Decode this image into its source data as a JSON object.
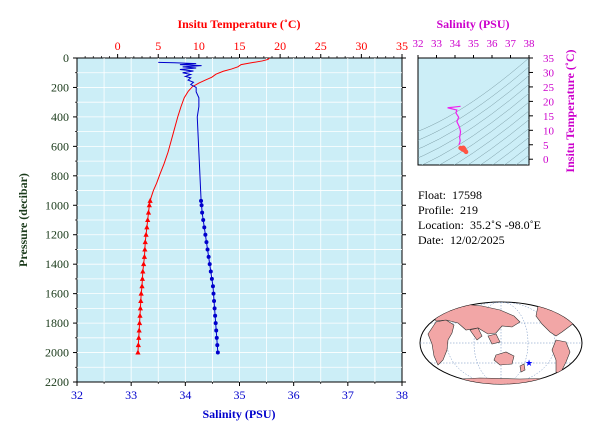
{
  "colors": {
    "temperature": "#ff0000",
    "salinity": "#0000cc",
    "pressure_axis": "#1a3a1a",
    "ts_axis": "#cc00cc",
    "plot_bg": "#cceef7",
    "ts_trace": "#ee22ee",
    "ts_points": "#ff5544",
    "land": "#f2a6a6",
    "ocean": "#ffffff",
    "float_marker": "#0000ff"
  },
  "chart_data": [
    {
      "type": "line",
      "name": "profile",
      "top_axis": {
        "label": "Insitu Temperature (˚C)",
        "range": [
          -5,
          35
        ],
        "ticks": [
          0,
          5,
          10,
          15,
          20,
          25,
          30,
          35
        ]
      },
      "bottom_axis": {
        "label": "Salinity (PSU)",
        "range": [
          32,
          38
        ],
        "ticks": [
          32,
          33,
          34,
          35,
          36,
          37,
          38
        ]
      },
      "left_axis": {
        "label": "Pressure (decibar)",
        "range": [
          0,
          2200
        ],
        "ticks": [
          0,
          200,
          400,
          600,
          800,
          1000,
          1200,
          1400,
          1600,
          1800,
          2000,
          2200
        ],
        "inverted": true
      },
      "series": [
        {
          "variable": "temperature",
          "line": [
            [
              18.7,
              0
            ],
            [
              18.5,
              10
            ],
            [
              17.8,
              20
            ],
            [
              16.2,
              35
            ],
            [
              15.2,
              45
            ],
            [
              14.8,
              60
            ],
            [
              14.0,
              75
            ],
            [
              13.0,
              90
            ],
            [
              12.1,
              110
            ],
            [
              11.6,
              130
            ],
            [
              10.8,
              150
            ],
            [
              10.0,
              170
            ],
            [
              9.2,
              195
            ],
            [
              8.7,
              225
            ],
            [
              8.2,
              270
            ],
            [
              7.8,
              330
            ],
            [
              7.4,
              400
            ],
            [
              7.0,
              480
            ],
            [
              6.6,
              560
            ],
            [
              6.2,
              640
            ],
            [
              5.7,
              720
            ],
            [
              5.2,
              790
            ],
            [
              4.8,
              850
            ],
            [
              4.4,
              900
            ],
            [
              4.1,
              950
            ],
            [
              3.9,
              1000
            ],
            [
              3.8,
              1050
            ],
            [
              3.7,
              1100
            ],
            [
              3.6,
              1150
            ],
            [
              3.5,
              1200
            ],
            [
              3.4,
              1250
            ],
            [
              3.35,
              1300
            ],
            [
              3.3,
              1350
            ],
            [
              3.2,
              1400
            ],
            [
              3.1,
              1450
            ],
            [
              3.05,
              1500
            ],
            [
              3.0,
              1550
            ],
            [
              2.9,
              1600
            ],
            [
              2.85,
              1650
            ],
            [
              2.8,
              1700
            ],
            [
              2.75,
              1750
            ],
            [
              2.7,
              1800
            ],
            [
              2.65,
              1850
            ],
            [
              2.6,
              1900
            ],
            [
              2.55,
              1950
            ],
            [
              2.5,
              2000
            ]
          ],
          "markers": [
            [
              4.0,
              970
            ],
            [
              3.9,
              1000
            ],
            [
              3.8,
              1050
            ],
            [
              3.7,
              1100
            ],
            [
              3.6,
              1150
            ],
            [
              3.5,
              1200
            ],
            [
              3.4,
              1250
            ],
            [
              3.35,
              1300
            ],
            [
              3.3,
              1350
            ],
            [
              3.2,
              1400
            ],
            [
              3.1,
              1450
            ],
            [
              3.05,
              1500
            ],
            [
              3.0,
              1550
            ],
            [
              2.9,
              1600
            ],
            [
              2.85,
              1650
            ],
            [
              2.8,
              1700
            ],
            [
              2.75,
              1750
            ],
            [
              2.7,
              1800
            ],
            [
              2.65,
              1850
            ],
            [
              2.6,
              1900
            ],
            [
              2.55,
              1950
            ],
            [
              2.5,
              2000
            ]
          ]
        },
        {
          "variable": "salinity",
          "line": [
            [
              33.5,
              30
            ],
            [
              33.8,
              32
            ],
            [
              34.2,
              38
            ],
            [
              33.9,
              45
            ],
            [
              34.3,
              52
            ],
            [
              33.95,
              60
            ],
            [
              34.2,
              68
            ],
            [
              33.9,
              78
            ],
            [
              34.15,
              88
            ],
            [
              33.95,
              100
            ],
            [
              34.1,
              112
            ],
            [
              34.0,
              125
            ],
            [
              34.1,
              135
            ],
            [
              34.05,
              150
            ],
            [
              34.15,
              165
            ],
            [
              34.1,
              180
            ],
            [
              34.2,
              200
            ],
            [
              34.2,
              230
            ],
            [
              34.25,
              270
            ],
            [
              34.25,
              330
            ],
            [
              34.22,
              400
            ],
            [
              34.23,
              480
            ],
            [
              34.24,
              560
            ],
            [
              34.25,
              640
            ],
            [
              34.26,
              720
            ],
            [
              34.27,
              800
            ],
            [
              34.28,
              880
            ],
            [
              34.29,
              960
            ],
            [
              34.3,
              1000
            ],
            [
              34.31,
              1050
            ],
            [
              34.33,
              1100
            ],
            [
              34.35,
              1150
            ],
            [
              34.37,
              1200
            ],
            [
              34.39,
              1250
            ],
            [
              34.41,
              1300
            ],
            [
              34.43,
              1350
            ],
            [
              34.45,
              1400
            ],
            [
              34.47,
              1450
            ],
            [
              34.49,
              1500
            ],
            [
              34.51,
              1550
            ],
            [
              34.52,
              1600
            ],
            [
              34.53,
              1650
            ],
            [
              34.54,
              1700
            ],
            [
              34.55,
              1750
            ],
            [
              34.56,
              1800
            ],
            [
              34.57,
              1850
            ],
            [
              34.58,
              1900
            ],
            [
              34.59,
              1950
            ],
            [
              34.6,
              2000
            ]
          ],
          "markers": [
            [
              34.29,
              970
            ],
            [
              34.3,
              1000
            ],
            [
              34.31,
              1050
            ],
            [
              34.33,
              1100
            ],
            [
              34.35,
              1150
            ],
            [
              34.37,
              1200
            ],
            [
              34.39,
              1250
            ],
            [
              34.41,
              1300
            ],
            [
              34.43,
              1350
            ],
            [
              34.45,
              1400
            ],
            [
              34.47,
              1450
            ],
            [
              34.49,
              1500
            ],
            [
              34.51,
              1550
            ],
            [
              34.52,
              1600
            ],
            [
              34.53,
              1650
            ],
            [
              34.54,
              1700
            ],
            [
              34.55,
              1750
            ],
            [
              34.56,
              1800
            ],
            [
              34.57,
              1850
            ],
            [
              34.58,
              1900
            ],
            [
              34.59,
              1950
            ],
            [
              34.6,
              2000
            ]
          ]
        }
      ]
    },
    {
      "type": "scatter",
      "name": "ts_diagram",
      "top_axis": {
        "label": "Salinity (PSU)",
        "range": [
          32,
          38
        ],
        "ticks": [
          32,
          33,
          34,
          35,
          36,
          37,
          38
        ]
      },
      "right_axis": {
        "label": "Insitu Temperature (˚C)",
        "range": [
          -2,
          35
        ],
        "ticks": [
          0,
          5,
          10,
          15,
          20,
          25,
          30,
          35
        ]
      },
      "density_contours": true,
      "trace": [
        [
          34.2,
          5.0
        ],
        [
          34.25,
          5.5
        ],
        [
          34.28,
          6.5
        ],
        [
          34.25,
          7.5
        ],
        [
          34.3,
          9.5
        ],
        [
          34.25,
          11.0
        ],
        [
          34.1,
          13.0
        ],
        [
          34.2,
          14.5
        ],
        [
          34.05,
          16.0
        ],
        [
          34.1,
          17.0
        ],
        [
          33.6,
          17.8
        ],
        [
          33.9,
          18.0
        ],
        [
          34.3,
          18.3
        ]
      ],
      "points": [
        [
          34.3,
          3.9
        ],
        [
          34.35,
          3.7
        ],
        [
          34.4,
          3.5
        ],
        [
          34.45,
          3.3
        ],
        [
          34.5,
          3.1
        ],
        [
          34.55,
          2.9
        ],
        [
          34.58,
          2.7
        ],
        [
          34.6,
          2.5
        ],
        [
          34.5,
          3.6
        ],
        [
          34.45,
          4.0
        ]
      ]
    }
  ],
  "info": {
    "float_label": "Float:",
    "float_value": "17598",
    "profile_label": "Profile:",
    "profile_value": "219",
    "location_label": "Location:",
    "location_value": "35.2˚S  -98.0˚E",
    "date_label": "Date:",
    "date_value": "12/02/2025"
  },
  "map": {
    "projection": "world-map",
    "marker_symbol": "★"
  }
}
